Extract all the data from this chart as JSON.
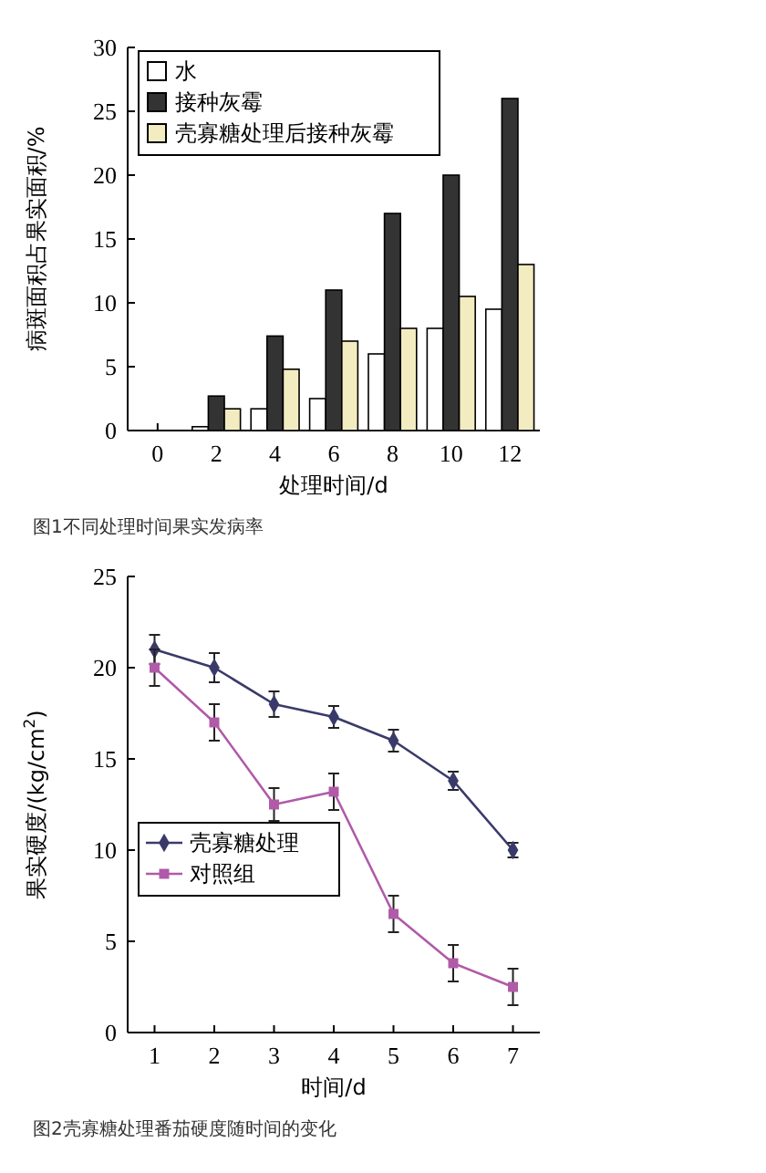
{
  "chart_data": [
    {
      "type": "bar",
      "title": "图1不同处理时间果实发病率",
      "xlabel": "处理时间/d",
      "ylabel": "病斑面积占果实面积/%",
      "categories": [
        "0",
        "2",
        "4",
        "6",
        "8",
        "10",
        "12"
      ],
      "ylim": [
        0,
        30
      ],
      "yticks": [
        0,
        5,
        10,
        15,
        20,
        25,
        30
      ],
      "legend": "top left",
      "series": [
        {
          "name": "水",
          "color": "#ffffff",
          "values": [
            0,
            0.3,
            1.7,
            2.5,
            6,
            8,
            9.5
          ]
        },
        {
          "name": "接种灰霉",
          "color": "#333333",
          "values": [
            0,
            2.7,
            7.4,
            11,
            17,
            20,
            26
          ]
        },
        {
          "name": "壳寡糖处理后接种灰霉",
          "color": "#f3ecc0",
          "values": [
            0,
            1.7,
            4.8,
            7,
            8,
            10.5,
            13
          ]
        }
      ]
    },
    {
      "type": "line",
      "title": "图2壳寡糖处理番茄硬度随时间的变化",
      "xlabel": "时间/d",
      "ylabel": "果实硬度/(kg/cm$^{2}$)",
      "x": [
        1,
        2,
        3,
        4,
        5,
        6,
        7
      ],
      "xlim": [
        0.55,
        7.45
      ],
      "xticks": [
        1,
        2,
        3,
        4,
        5,
        6,
        7
      ],
      "ylim": [
        0,
        25
      ],
      "yticks": [
        0,
        5,
        10,
        15,
        20,
        25
      ],
      "legend": "left",
      "series": [
        {
          "name": "壳寡糖处理",
          "color": "#3a3a6a",
          "marker": "diamond",
          "values": [
            21,
            20,
            18,
            17.3,
            16,
            13.8,
            10
          ],
          "errors": [
            0.8,
            0.8,
            0.7,
            0.6,
            0.6,
            0.5,
            0.4
          ]
        },
        {
          "name": "对照组",
          "color": "#b05aa8",
          "marker": "square",
          "values": [
            20,
            17,
            12.5,
            13.2,
            6.5,
            3.8,
            2.5
          ],
          "errors": [
            1,
            1,
            0.9,
            1,
            1,
            1,
            1
          ]
        }
      ]
    }
  ]
}
